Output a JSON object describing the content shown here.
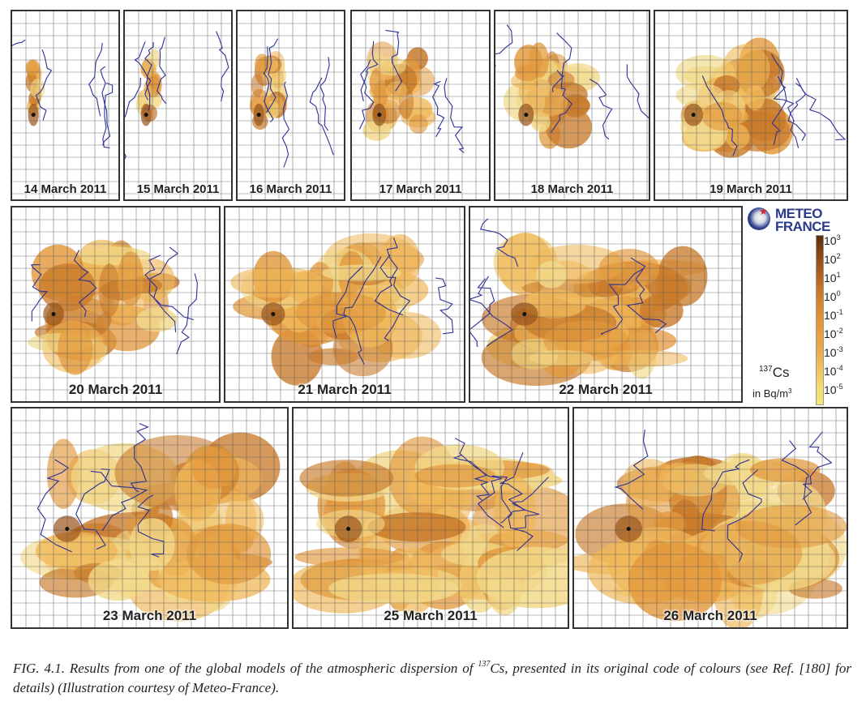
{
  "panels": [
    {
      "label": "14 March 2011",
      "spread": 0.1
    },
    {
      "label": "15 March 2011",
      "spread": 0.18
    },
    {
      "label": "16 March 2011",
      "spread": 0.28
    },
    {
      "label": "17 March 2011",
      "spread": 0.42
    },
    {
      "label": "18 March 2011",
      "spread": 0.52
    },
    {
      "label": "19 March 2011",
      "spread": 0.62
    },
    {
      "label": "20 March 2011",
      "spread": 0.7
    },
    {
      "label": "21 March 2011",
      "spread": 0.78
    },
    {
      "label": "22 March 2011",
      "spread": 0.84
    },
    {
      "label": "23 March 2011",
      "spread": 0.9
    },
    {
      "label": "25 March 2011",
      "spread": 0.95
    },
    {
      "label": "26 March 2011",
      "spread": 0.98
    }
  ],
  "legend": {
    "brand_line1": "METEO",
    "brand_line2": "FRANCE",
    "ticks": [
      {
        "base": "10",
        "exp": "3"
      },
      {
        "base": "10",
        "exp": "2"
      },
      {
        "base": "10",
        "exp": "1"
      },
      {
        "base": "10",
        "exp": "0"
      },
      {
        "base": "10",
        "exp": "-1"
      },
      {
        "base": "10",
        "exp": "-2"
      },
      {
        "base": "10",
        "exp": "-3"
      },
      {
        "base": "10",
        "exp": "-4"
      },
      {
        "base": "10",
        "exp": "-5"
      }
    ],
    "isotope_mass": "137",
    "isotope_symbol": "Cs",
    "unit_prefix": "in Bq/m",
    "unit_exp": "3",
    "brand_color": "#2b3a8c",
    "scale_colors": [
      "#5a2c0c",
      "#b8651e",
      "#e79b36",
      "#f2c35e",
      "#f2ea79"
    ]
  },
  "caption": {
    "part1": "FIG. 4.1. Results from one of the global models of the atmospheric dispersion of ",
    "sup": "137",
    "part2": "Cs, presented in its original code of colours (see Ref. [180] for details) (Illustration courtesy of Meteo-France)."
  },
  "colors": {
    "plume_dark": "#c97a2a",
    "plume_mid": "#e39a3e",
    "plume_light": "#f0b85a",
    "plume_pale": "#f2d98a",
    "coast": "#2a2f9a",
    "grid": "#555555"
  }
}
